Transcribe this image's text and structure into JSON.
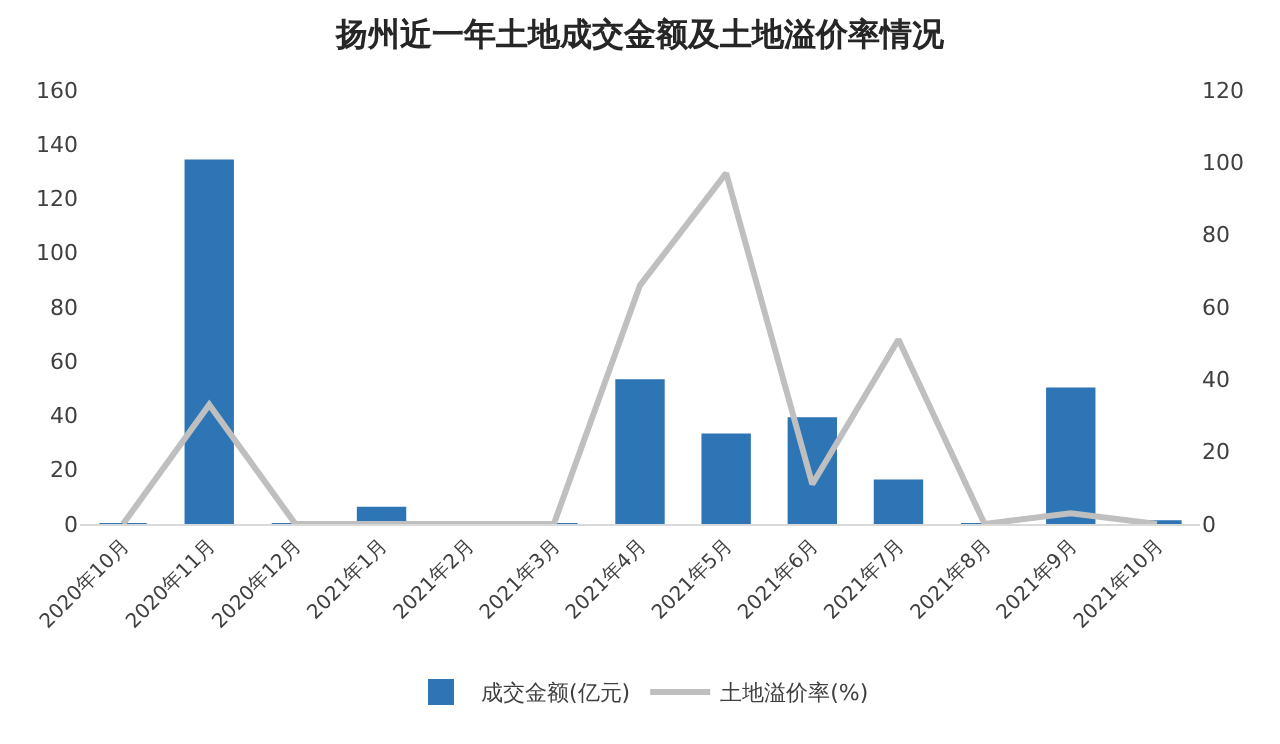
{
  "chart_data": {
    "type": "bar",
    "title": "扬州近一年土地成交金额及土地溢价率情况",
    "categories": [
      "2020年10月",
      "2020年11月",
      "2020年12月",
      "2021年1月",
      "2021年2月",
      "2021年3月",
      "2021年4月",
      "2021年5月",
      "2021年6月",
      "2021年7月",
      "2021年8月",
      "2021年9月",
      "2021年10月"
    ],
    "series": [
      {
        "name": "成交金额(亿元)",
        "color": "#2e75b6",
        "values": [
          0,
          134,
          0,
          6,
          0,
          0,
          53,
          33,
          39,
          16,
          0,
          50,
          1
        ]
      },
      {
        "name": "土地溢价率(%)",
        "type": "line",
        "axis": "y2",
        "color": "#bfbfbf",
        "values": [
          0,
          33,
          0,
          0,
          0,
          0,
          66,
          97,
          11,
          51,
          0,
          3,
          0
        ]
      }
    ],
    "ylim": [
      0,
      160
    ],
    "yticks": [
      0,
      20,
      40,
      60,
      80,
      100,
      120,
      140,
      160
    ],
    "y2lim": [
      0,
      120
    ],
    "y2ticks": [
      0,
      20,
      40,
      60,
      80,
      100,
      120
    ],
    "grid": false,
    "legend": "bottom",
    "marker": "none",
    "line_style": "solid"
  }
}
